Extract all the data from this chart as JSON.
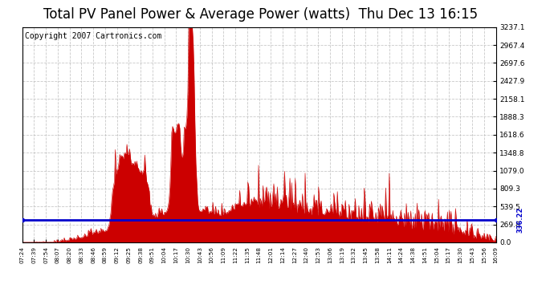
{
  "title": "Total PV Panel Power & Average Power (watts)  Thu Dec 13 16:15",
  "copyright": "Copyright 2007 Cartronics.com",
  "avg_line_value": 336.22,
  "y_max": 3237.1,
  "y_ticks": [
    0.0,
    269.8,
    539.5,
    809.3,
    1079.0,
    1348.8,
    1618.6,
    1888.3,
    2158.1,
    2427.9,
    2697.6,
    2967.4,
    3237.1
  ],
  "x_labels": [
    "07:24",
    "07:39",
    "07:54",
    "08:07",
    "08:20",
    "08:33",
    "08:46",
    "08:59",
    "09:12",
    "09:25",
    "09:38",
    "09:51",
    "10:04",
    "10:17",
    "10:30",
    "10:43",
    "10:56",
    "11:09",
    "11:22",
    "11:35",
    "11:48",
    "12:01",
    "12:14",
    "12:27",
    "12:40",
    "12:53",
    "13:06",
    "13:19",
    "13:32",
    "13:45",
    "13:58",
    "14:11",
    "14:24",
    "14:38",
    "14:51",
    "15:04",
    "15:17",
    "15:30",
    "15:43",
    "15:56",
    "16:09"
  ],
  "background_color": "#ffffff",
  "bar_color": "#cc0000",
  "line_color": "#0000cc",
  "grid_color": "#bbbbbb",
  "title_fontsize": 12,
  "copyright_fontsize": 7
}
